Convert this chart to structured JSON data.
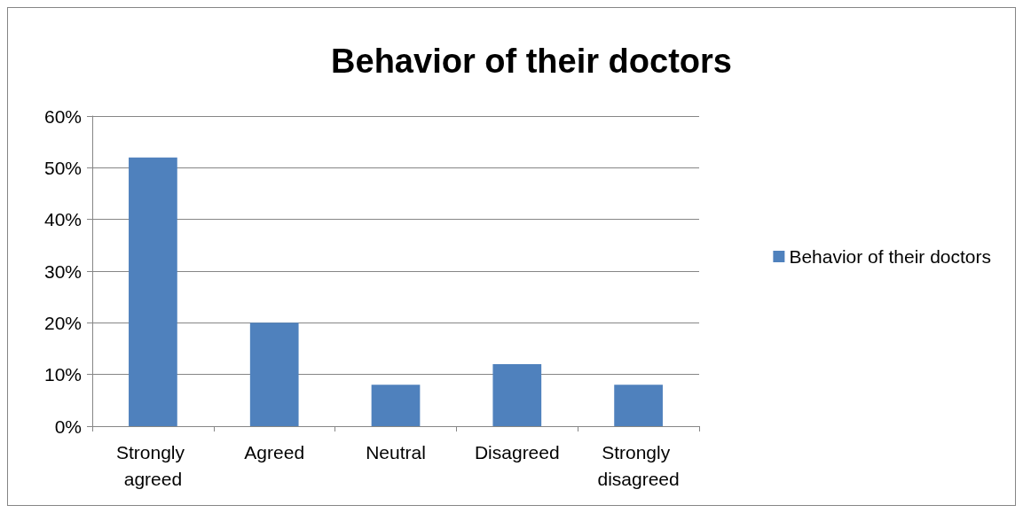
{
  "chart_data": {
    "type": "bar",
    "title": "Behavior of their doctors",
    "categories": [
      "Strongly agreed",
      "Agreed",
      "Neutral",
      "Disagreed",
      "Strongly disagreed"
    ],
    "series": [
      {
        "name": "Behavior of their doctors",
        "color": "#4f81bd",
        "values": [
          52,
          20,
          8,
          12,
          8
        ]
      }
    ],
    "ylim": [
      0,
      60
    ],
    "yticks": [
      {
        "value": 0,
        "label": "0%"
      },
      {
        "value": 10,
        "label": "10%"
      },
      {
        "value": 20,
        "label": "20%"
      },
      {
        "value": 30,
        "label": "30%"
      },
      {
        "value": 40,
        "label": "40%"
      },
      {
        "value": 50,
        "label": "50%"
      },
      {
        "value": 60,
        "label": "60%"
      }
    ],
    "grid": "y",
    "legend": "right"
  }
}
